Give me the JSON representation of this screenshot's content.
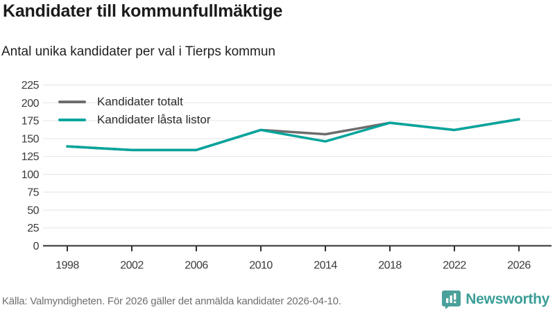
{
  "header": {
    "title": "Kandidater till kommunfullmäktige",
    "subtitle": "Antal unika kandidater per val i Tierps kommun"
  },
  "chart_data": {
    "type": "line",
    "x": [
      1998,
      2002,
      2006,
      2010,
      2014,
      2018,
      2022,
      2026
    ],
    "series": [
      {
        "name": "Kandidater totalt",
        "color": "#6d6d6d",
        "values": [
          139,
          134,
          134,
          162,
          156,
          172,
          162,
          177
        ]
      },
      {
        "name": "Kandidater låsta listor",
        "color": "#00a49c",
        "values": [
          139,
          134,
          134,
          162,
          146,
          172,
          162,
          177
        ]
      }
    ],
    "ylim": [
      0,
      225
    ],
    "ytick_step": 25,
    "grid": true,
    "legend_position": "top-left",
    "xlabel": "",
    "ylabel": ""
  },
  "footer": {
    "source": "Källa: Valmyndigheten. För 2026 gäller det anmälda kandidater 2026-04-10.",
    "brand": "Newsworthy"
  },
  "colors": {
    "grid": "#e3e3e3",
    "axis": "#2e2e2e",
    "tick_label": "#3a3a3a",
    "brand_teal": "#3b9e97",
    "logo_bubble": "#4aa09a"
  }
}
